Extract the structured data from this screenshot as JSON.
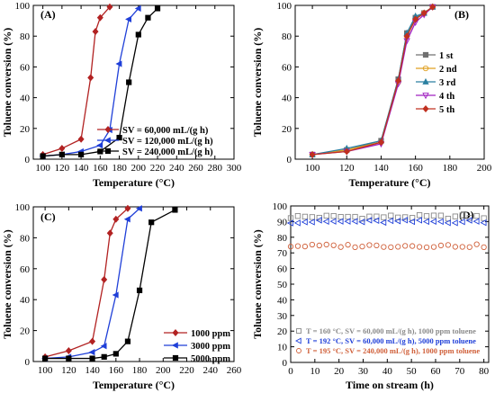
{
  "chart_data": [
    {
      "panel": "(A)",
      "type": "line",
      "xlabel": "Temperature (°C)",
      "ylabel": "Toluene conversion (%)",
      "xlim": [
        90,
        300
      ],
      "ylim": [
        0,
        100
      ],
      "xticks": [
        100,
        120,
        140,
        160,
        180,
        200,
        220,
        240,
        260,
        280,
        300
      ],
      "yticks": [
        0,
        20,
        40,
        60,
        80,
        100
      ],
      "legend_position": "bottom-right",
      "series": [
        {
          "name": "SV = 60,000  mL/(g h)",
          "color": "#b22222",
          "marker": "diamond",
          "x": [
            100,
            120,
            140,
            150,
            155,
            160,
            170
          ],
          "y": [
            3,
            7,
            13,
            53,
            83,
            92,
            99
          ]
        },
        {
          "name": "SV = 120,000 mL/(g h)",
          "color": "#1f3fd8",
          "marker": "left-triangle",
          "x": [
            100,
            120,
            140,
            160,
            170,
            180,
            190,
            200
          ],
          "y": [
            2,
            3,
            5,
            9,
            19,
            62,
            91,
            98
          ]
        },
        {
          "name": "SV = 240,000 mL/(g h)",
          "color": "#000000",
          "marker": "square",
          "x": [
            100,
            120,
            140,
            160,
            180,
            190,
            200,
            210,
            220
          ],
          "y": [
            2,
            3,
            3,
            5,
            14,
            50,
            81,
            92,
            98
          ]
        }
      ]
    },
    {
      "panel": "(B)",
      "type": "line",
      "xlabel": "Temperature (°C)",
      "ylabel": "Toluene conversion (%)",
      "xlim": [
        90,
        200
      ],
      "ylim": [
        0,
        100
      ],
      "xticks": [
        100,
        120,
        140,
        160,
        180,
        200
      ],
      "yticks": [
        0,
        20,
        40,
        60,
        80,
        100
      ],
      "legend_position": "right",
      "series": [
        {
          "name": "1 st",
          "color": "#707070",
          "marker": "square",
          "x": [
            100,
            120,
            140,
            150,
            155,
            160,
            165,
            170
          ],
          "y": [
            3,
            6,
            12,
            52,
            82,
            92,
            95,
            99
          ]
        },
        {
          "name": "2 nd",
          "color": "#e0a020",
          "marker": "circle",
          "x": [
            100,
            120,
            140,
            150,
            155,
            160,
            165,
            170
          ],
          "y": [
            3,
            6,
            11,
            50,
            80,
            91,
            95,
            99
          ]
        },
        {
          "name": "3 rd",
          "color": "#2a7fa0",
          "marker": "triangle",
          "x": [
            100,
            120,
            140,
            150,
            155,
            160,
            165,
            170
          ],
          "y": [
            3,
            7,
            12,
            52,
            82,
            93,
            95,
            99
          ]
        },
        {
          "name": "4 th",
          "color": "#a020c0",
          "marker": "down-triangle",
          "x": [
            100,
            120,
            140,
            150,
            155,
            160,
            165,
            170
          ],
          "y": [
            3,
            5,
            10,
            49,
            77,
            89,
            94,
            99
          ]
        },
        {
          "name": "5 th",
          "color": "#c03020",
          "marker": "diamond",
          "x": [
            100,
            120,
            140,
            150,
            155,
            160,
            165,
            170
          ],
          "y": [
            3,
            5,
            11,
            51,
            80,
            91,
            95,
            99
          ]
        }
      ]
    },
    {
      "panel": "(C)",
      "type": "line",
      "xlabel": "Temperature (°C)",
      "ylabel": "Toluene conversion (%)",
      "xlim": [
        90,
        260
      ],
      "ylim": [
        0,
        100
      ],
      "xticks": [
        100,
        120,
        140,
        160,
        180,
        200,
        220,
        240,
        260
      ],
      "yticks": [
        0,
        20,
        40,
        60,
        80,
        100
      ],
      "legend_position": "bottom-right",
      "series": [
        {
          "name": "1000 ppm",
          "color": "#b22222",
          "marker": "diamond",
          "x": [
            100,
            120,
            140,
            150,
            155,
            160,
            170
          ],
          "y": [
            3,
            7,
            13,
            53,
            83,
            92,
            99
          ]
        },
        {
          "name": "3000 ppm",
          "color": "#1f3fd8",
          "marker": "left-triangle",
          "x": [
            100,
            120,
            140,
            150,
            160,
            170,
            180
          ],
          "y": [
            2,
            3,
            6,
            10,
            43,
            92,
            99
          ]
        },
        {
          "name": "5000 ppm",
          "color": "#000000",
          "marker": "square",
          "x": [
            100,
            120,
            140,
            150,
            160,
            170,
            180,
            190,
            210
          ],
          "y": [
            2,
            2,
            2,
            3,
            5,
            13,
            46,
            90,
            98
          ]
        }
      ]
    },
    {
      "panel": "(D)",
      "type": "scatter",
      "xlabel": "Time on stream (h)",
      "ylabel": "Toluene conversion (%)",
      "xlim": [
        0,
        82
      ],
      "ylim": [
        0,
        100
      ],
      "xticks": [
        0,
        10,
        20,
        30,
        40,
        50,
        60,
        70,
        80
      ],
      "yticks": [
        0,
        10,
        20,
        30,
        40,
        50,
        60,
        70,
        80,
        90,
        100
      ],
      "legend_position": "bottom-left",
      "series": [
        {
          "name": "T = 160 °C, SV = 60,000 mL/(g h), 1000 ppm toluene",
          "color": "#8a8a8a",
          "marker": "square",
          "x_range": [
            0,
            80
          ],
          "points": 28,
          "y_mean": 93,
          "y_jitter": 1.2
        },
        {
          "name": "T = 192 °C, SV = 60,000 mL/(g h), 5000 ppm toluene",
          "color": "#1f3fd8",
          "marker": "left-triangle",
          "x_range": [
            0,
            80
          ],
          "points": 28,
          "y_mean": 90,
          "y_jitter": 1.0
        },
        {
          "name": "T = 195 °C, SV = 240,000 mL/(g h), 1000 ppm toluene",
          "color": "#d0603a",
          "marker": "circle",
          "x_range": [
            0,
            80
          ],
          "points": 28,
          "y_mean": 74.5,
          "y_jitter": 1.0
        }
      ]
    }
  ]
}
